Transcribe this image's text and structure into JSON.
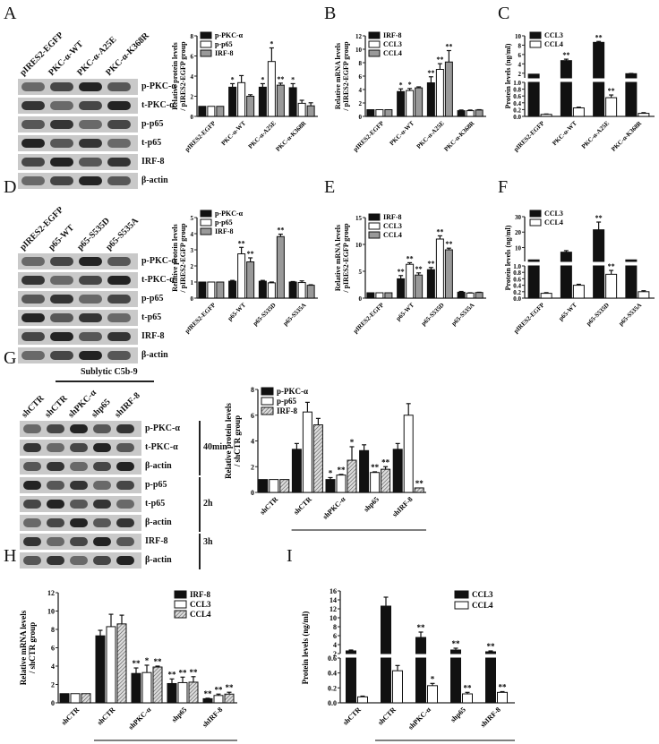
{
  "panels": {
    "A": {
      "letter": "A"
    },
    "B": {
      "letter": "B"
    },
    "C": {
      "letter": "C"
    },
    "D": {
      "letter": "D"
    },
    "E": {
      "letter": "E"
    },
    "F": {
      "letter": "F"
    },
    "G": {
      "letter": "G"
    },
    "H": {
      "letter": "H"
    },
    "I": {
      "letter": "I"
    }
  },
  "blots": {
    "A": {
      "lanes": [
        "pIRES2-EGFP",
        "PKC-α-WT",
        "PKC-α-A25E",
        "PKC-α-K368R"
      ],
      "rows": [
        "p-PKC-α",
        "t-PKC-α",
        "p-p65",
        "t-p65",
        "IRF-8",
        "β-actin"
      ]
    },
    "D": {
      "lanes": [
        "pIRES2-EGFP",
        "p65-WT",
        "p65-S535D",
        "p65-S535A"
      ],
      "rows": [
        "p-PKC-α",
        "t-PKC-α",
        "p-p65",
        "t-p65",
        "IRF-8",
        "β-actin"
      ]
    },
    "G": {
      "group_label": "Sublytic C5b-9",
      "lanes": [
        "shCTR",
        "shCTR",
        "shPKC-α",
        "shp65",
        "shIRF-8"
      ],
      "rows": [
        "p-PKC-α",
        "t-PKC-α",
        "β-actin",
        "p-p65",
        "t-p65",
        "β-actin",
        "IRF-8",
        "β-actin"
      ],
      "times": [
        "40min",
        "2h",
        "3h"
      ]
    }
  },
  "chart_data": [
    {
      "panel": "A",
      "type": "bar",
      "ylabel": "Relative protein levels / pIRES2-EGFP group",
      "ylim": [
        0,
        8
      ],
      "yticks": [
        0,
        2,
        4,
        6,
        8
      ],
      "categories": [
        "pIRES2-EGFP",
        "PKC-α-WT",
        "PKC-α-A25E",
        "PKC-α-K368R"
      ],
      "series": [
        {
          "name": "p-PKC-α",
          "fill": "black",
          "values": [
            1.0,
            2.9,
            2.9,
            2.85
          ],
          "errors": [
            0,
            0.35,
            0.35,
            0.4
          ],
          "sig": [
            "",
            "*",
            "*",
            "*"
          ]
        },
        {
          "name": "p-p65",
          "fill": "white",
          "values": [
            1.0,
            3.35,
            5.45,
            1.3
          ],
          "errors": [
            0,
            0.7,
            1.35,
            0.3
          ],
          "sig": [
            "",
            "",
            "*",
            ""
          ]
        },
        {
          "name": "IRF-8",
          "fill": "gray",
          "values": [
            1.0,
            2.0,
            3.1,
            1.05
          ],
          "errors": [
            0,
            0.15,
            0.2,
            0.3
          ],
          "sig": [
            "",
            "",
            "**",
            ""
          ]
        }
      ]
    },
    {
      "panel": "B",
      "type": "bar",
      "ylabel": "Relative mRNA levels / pIRES2-EGFP group",
      "ylim": [
        0,
        12
      ],
      "yticks": [
        0,
        2,
        4,
        6,
        8,
        10,
        12
      ],
      "categories": [
        "pIRES2-EGFP",
        "PKC-α-WT",
        "PKC-α-A25E",
        "PKC-α-K368R"
      ],
      "series": [
        {
          "name": "IRF-8",
          "fill": "black",
          "values": [
            1.0,
            3.7,
            5.0,
            0.85
          ],
          "errors": [
            0,
            0.4,
            0.9,
            0.1
          ],
          "sig": [
            "",
            "*",
            "**",
            ""
          ]
        },
        {
          "name": "CCL3",
          "fill": "white",
          "values": [
            1.0,
            3.85,
            7.0,
            0.85
          ],
          "errors": [
            0,
            0.3,
            0.85,
            0.1
          ],
          "sig": [
            "",
            "*",
            "**",
            ""
          ]
        },
        {
          "name": "CCL4",
          "fill": "gray",
          "values": [
            1.0,
            4.25,
            8.1,
            0.95
          ],
          "errors": [
            0,
            0.15,
            1.7,
            0.05
          ],
          "sig": [
            "",
            "",
            "**",
            ""
          ]
        }
      ]
    },
    {
      "panel": "C",
      "type": "bar",
      "broken_axis": true,
      "ylabel": "Protein levels (ng/ml)",
      "ylim_lower": [
        0,
        1.0
      ],
      "yticks_lower": [
        0.0,
        0.2,
        0.4,
        0.6,
        0.8,
        1.0
      ],
      "ylim_upper": [
        1,
        10
      ],
      "yticks_upper": [
        2,
        4,
        6,
        8,
        10
      ],
      "categories": [
        "pIRES2-EGFP",
        "PKC-α-WT",
        "PKC-α-A25E",
        "PKC-α-K368R"
      ],
      "series": [
        {
          "name": "CCL3",
          "fill": "black",
          "values": [
            1.8,
            4.7,
            8.6,
            1.9
          ],
          "errors": [
            0,
            0.3,
            0.2,
            0.05
          ],
          "sig": [
            "",
            "**",
            "**",
            ""
          ]
        },
        {
          "name": "CCL4",
          "fill": "white",
          "values": [
            0.06,
            0.25,
            0.55,
            0.09
          ],
          "errors": [
            0.01,
            0.02,
            0.08,
            0.02
          ],
          "sig": [
            "",
            "",
            "**",
            ""
          ]
        }
      ]
    },
    {
      "panel": "D",
      "type": "bar",
      "ylabel": "Relative protein levels / pIRES2-EGFP group",
      "ylim": [
        0,
        5
      ],
      "yticks": [
        0,
        1,
        2,
        3,
        4,
        5
      ],
      "categories": [
        "pIRES2-EGFP",
        "p65-WT",
        "p65-S535D",
        "p65-S535A"
      ],
      "series": [
        {
          "name": "p-PKC-α",
          "fill": "black",
          "values": [
            1.0,
            1.05,
            1.05,
            1.0
          ],
          "errors": [
            0,
            0.05,
            0.05,
            0.03
          ],
          "sig": [
            "",
            "",
            "",
            ""
          ]
        },
        {
          "name": "p-p65",
          "fill": "white",
          "values": [
            1.0,
            2.75,
            0.95,
            0.97
          ],
          "errors": [
            0,
            0.4,
            0.05,
            0.1
          ],
          "sig": [
            "",
            "**",
            "",
            ""
          ]
        },
        {
          "name": "IRF-8",
          "fill": "gray",
          "values": [
            1.0,
            2.25,
            3.82,
            0.8
          ],
          "errors": [
            0,
            0.25,
            0.15,
            0.03
          ],
          "sig": [
            "",
            "**",
            "**",
            ""
          ]
        }
      ]
    },
    {
      "panel": "E",
      "type": "bar",
      "ylabel": "Relative mRNA levels / pIRES2-EGFP group",
      "ylim": [
        0,
        15
      ],
      "yticks": [
        0,
        5,
        10,
        15
      ],
      "categories": [
        "pIRES2-EGFP",
        "p65-WT",
        "p65-S535D",
        "p65-S535A"
      ],
      "series": [
        {
          "name": "IRF-8",
          "fill": "black",
          "values": [
            1.0,
            3.6,
            5.3,
            1.1
          ],
          "errors": [
            0,
            0.6,
            0.4,
            0.15
          ],
          "sig": [
            "",
            "**",
            "**",
            ""
          ]
        },
        {
          "name": "CCL3",
          "fill": "white",
          "values": [
            1.0,
            6.3,
            11.0,
            0.95
          ],
          "errors": [
            0,
            0.3,
            0.6,
            0.05
          ],
          "sig": [
            "",
            "**",
            "**",
            ""
          ]
        },
        {
          "name": "CCL4",
          "fill": "gray",
          "values": [
            1.0,
            4.3,
            9.0,
            1.05
          ],
          "errors": [
            0,
            0.4,
            0.3,
            0.05
          ],
          "sig": [
            "",
            "**",
            "**",
            ""
          ]
        }
      ]
    },
    {
      "panel": "F",
      "type": "bar",
      "broken_axis": true,
      "ylabel": "Protein levels (ng/ml)",
      "ylim_lower": [
        0,
        1.0
      ],
      "yticks_lower": [
        0.0,
        0.2,
        0.4,
        0.6,
        0.8,
        1.0
      ],
      "ylim_upper": [
        1,
        30
      ],
      "yticks_upper": [
        10,
        20,
        30
      ],
      "categories": [
        "pIRES2-EGFP",
        "p65-WT",
        "p65-S535D",
        "p65-S535A"
      ],
      "series": [
        {
          "name": "CCL3",
          "fill": "black",
          "values": [
            2.0,
            7.0,
            21.5,
            2.0
          ],
          "errors": [
            0,
            1.0,
            5.0,
            0
          ],
          "sig": [
            "",
            "",
            "**",
            ""
          ]
        },
        {
          "name": "CCL4",
          "fill": "white",
          "values": [
            0.15,
            0.4,
            0.74,
            0.2
          ],
          "errors": [
            0.02,
            0.03,
            0.12,
            0.03
          ],
          "sig": [
            "",
            "",
            "**",
            ""
          ]
        }
      ]
    },
    {
      "panel": "G",
      "type": "bar",
      "ylabel": "Relative protein levels / shCTR group",
      "xlabel": "Sublytic C5b-9",
      "ylim": [
        0,
        8
      ],
      "yticks": [
        0,
        2,
        4,
        6,
        8
      ],
      "categories": [
        "shCTR",
        "shCTR",
        "shPKC-α",
        "shp65",
        "shIRF-8"
      ],
      "series": [
        {
          "name": "p-PKC-α",
          "fill": "black",
          "values": [
            1.0,
            3.35,
            1.0,
            3.25,
            3.35
          ],
          "errors": [
            0,
            0.45,
            0.15,
            0.45,
            0.45
          ],
          "sig": [
            "",
            "",
            "*",
            "",
            ""
          ]
        },
        {
          "name": "p-p65",
          "fill": "white",
          "values": [
            1.0,
            6.25,
            1.35,
            1.55,
            6.0
          ],
          "errors": [
            0,
            0.75,
            0.05,
            0.05,
            0.9
          ],
          "sig": [
            "",
            "",
            "**",
            "**",
            ""
          ]
        },
        {
          "name": "IRF-8",
          "fill": "hatched",
          "values": [
            1.0,
            5.25,
            2.5,
            1.8,
            0.35
          ],
          "errors": [
            0,
            0.5,
            1.05,
            0.2,
            0
          ],
          "sig": [
            "",
            "",
            "*",
            "**",
            "**"
          ]
        }
      ]
    },
    {
      "panel": "H",
      "type": "bar",
      "ylabel": "Relative mRNA levels / shCTR group",
      "xlabel": "Sublytic C5b-9",
      "ylim": [
        0,
        12
      ],
      "yticks": [
        0,
        2,
        4,
        6,
        8,
        10,
        12
      ],
      "categories": [
        "shCTR",
        "shCTR",
        "shPKC-α",
        "shp65",
        "shIRF-8"
      ],
      "series": [
        {
          "name": "IRF-8",
          "fill": "black",
          "values": [
            1.0,
            7.3,
            3.2,
            2.1,
            0.45
          ],
          "errors": [
            0,
            0.6,
            0.6,
            0.5,
            0.05
          ],
          "sig": [
            "",
            "",
            "**",
            "**",
            "**"
          ]
        },
        {
          "name": "CCL3",
          "fill": "white",
          "values": [
            1.0,
            8.3,
            3.3,
            2.2,
            0.8
          ],
          "errors": [
            0,
            1.35,
            0.8,
            0.6,
            0.15
          ],
          "sig": [
            "",
            "",
            "*",
            "**",
            "**"
          ]
        },
        {
          "name": "CCL4",
          "fill": "hatched",
          "values": [
            1.0,
            8.6,
            3.9,
            2.25,
            0.95
          ],
          "errors": [
            0,
            0.95,
            0.1,
            0.6,
            0.2
          ],
          "sig": [
            "",
            "",
            "**",
            "**",
            "**"
          ]
        }
      ]
    },
    {
      "panel": "I",
      "type": "bar",
      "broken_axis": true,
      "ylabel": "Protein levels (ng/ml)",
      "xlabel": "Sublytic C5b-9",
      "ylim_lower": [
        0,
        0.6
      ],
      "yticks_lower": [
        0.0,
        0.2,
        0.4,
        0.6
      ],
      "ylim_upper": [
        2,
        16
      ],
      "yticks_upper": [
        2,
        4,
        6,
        8,
        10,
        12,
        14,
        16
      ],
      "categories": [
        "shCTR",
        "shCTR",
        "shPKC-α",
        "shp65",
        "shIRF-8"
      ],
      "series": [
        {
          "name": "CCL3",
          "fill": "black",
          "values": [
            2.6,
            12.6,
            5.6,
            2.8,
            2.4
          ],
          "errors": [
            0.2,
            2.0,
            1.2,
            0.4,
            0.2
          ],
          "sig": [
            "",
            "",
            "**",
            "**",
            "**"
          ]
        },
        {
          "name": "CCL4",
          "fill": "white",
          "values": [
            0.08,
            0.43,
            0.23,
            0.12,
            0.14
          ],
          "errors": [
            0.01,
            0.07,
            0.03,
            0.02,
            0.01
          ],
          "sig": [
            "",
            "",
            "*",
            "**",
            "**"
          ]
        }
      ]
    }
  ]
}
